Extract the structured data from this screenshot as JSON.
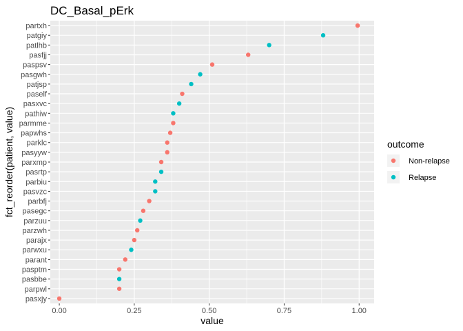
{
  "chart_data": {
    "type": "scatter",
    "title": "DC_Basal_pErk",
    "xlabel": "value",
    "ylabel": "fct_reorder(patient, value)",
    "xlim": [
      -0.03,
      1.05
    ],
    "x_ticks": [
      {
        "value": 0,
        "label": "0.00"
      },
      {
        "value": 0.25,
        "label": "0.25"
      },
      {
        "value": 0.5,
        "label": "0.50"
      },
      {
        "value": 0.75,
        "label": "0.75"
      },
      {
        "value": 1,
        "label": "1.00"
      }
    ],
    "grid": true,
    "legend": {
      "title": "outcome",
      "position": "right",
      "entries": [
        {
          "name": "Non-relapse",
          "color": "#F8766D"
        },
        {
          "name": "Relapse",
          "color": "#00BFC4"
        }
      ]
    },
    "categories": [
      "partxh",
      "patgiy",
      "patlhb",
      "pasfjj",
      "paspsv",
      "pasgwh",
      "patjsp",
      "paself",
      "pasxvc",
      "pathiw",
      "parmme",
      "papwhs",
      "parklc",
      "pasyyw",
      "parxmp",
      "pasrtp",
      "parbiu",
      "pasvzc",
      "parbfj",
      "pasegc",
      "parzuu",
      "parzwh",
      "parajx",
      "parwxu",
      "parant",
      "pasptm",
      "pasbbe",
      "parpwl",
      "pasxjy"
    ],
    "points": [
      {
        "patient": "partxh",
        "value": 0.995,
        "outcome": "Non-relapse"
      },
      {
        "patient": "patgiy",
        "value": 0.88,
        "outcome": "Relapse"
      },
      {
        "patient": "patlhb",
        "value": 0.7,
        "outcome": "Relapse"
      },
      {
        "patient": "pasfjj",
        "value": 0.63,
        "outcome": "Non-relapse"
      },
      {
        "patient": "paspsv",
        "value": 0.51,
        "outcome": "Non-relapse"
      },
      {
        "patient": "pasgwh",
        "value": 0.47,
        "outcome": "Relapse"
      },
      {
        "patient": "patjsp",
        "value": 0.44,
        "outcome": "Relapse"
      },
      {
        "patient": "paself",
        "value": 0.41,
        "outcome": "Non-relapse"
      },
      {
        "patient": "pasxvc",
        "value": 0.4,
        "outcome": "Relapse"
      },
      {
        "patient": "pathiw",
        "value": 0.38,
        "outcome": "Relapse"
      },
      {
        "patient": "parmme",
        "value": 0.38,
        "outcome": "Non-relapse"
      },
      {
        "patient": "papwhs",
        "value": 0.37,
        "outcome": "Non-relapse"
      },
      {
        "patient": "parklc",
        "value": 0.36,
        "outcome": "Non-relapse"
      },
      {
        "patient": "pasyyw",
        "value": 0.36,
        "outcome": "Non-relapse"
      },
      {
        "patient": "parxmp",
        "value": 0.34,
        "outcome": "Non-relapse"
      },
      {
        "patient": "pasrtp",
        "value": 0.34,
        "outcome": "Relapse"
      },
      {
        "patient": "parbiu",
        "value": 0.32,
        "outcome": "Relapse"
      },
      {
        "patient": "pasvzc",
        "value": 0.32,
        "outcome": "Relapse"
      },
      {
        "patient": "parbfj",
        "value": 0.3,
        "outcome": "Non-relapse"
      },
      {
        "patient": "pasegc",
        "value": 0.28,
        "outcome": "Non-relapse"
      },
      {
        "patient": "parzuu",
        "value": 0.27,
        "outcome": "Relapse"
      },
      {
        "patient": "parzwh",
        "value": 0.26,
        "outcome": "Non-relapse"
      },
      {
        "patient": "parajx",
        "value": 0.25,
        "outcome": "Non-relapse"
      },
      {
        "patient": "parwxu",
        "value": 0.24,
        "outcome": "Relapse"
      },
      {
        "patient": "parant",
        "value": 0.22,
        "outcome": "Non-relapse"
      },
      {
        "patient": "pasptm",
        "value": 0.2,
        "outcome": "Non-relapse"
      },
      {
        "patient": "pasbbe",
        "value": 0.2,
        "outcome": "Relapse"
      },
      {
        "patient": "parpwl",
        "value": 0.2,
        "outcome": "Non-relapse"
      },
      {
        "patient": "pasxjy",
        "value": 0.0,
        "outcome": "Non-relapse"
      }
    ]
  }
}
